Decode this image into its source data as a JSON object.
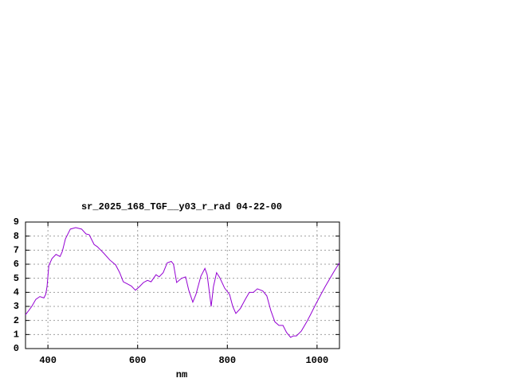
{
  "chart_data": {
    "type": "line",
    "title": "sr_2025_168_TGF__y03_r_rad 04-22-00",
    "x_label": "nm",
    "x": [
      350,
      364,
      373,
      382,
      391,
      395,
      398,
      402,
      409,
      418,
      427,
      432,
      439,
      450,
      462,
      475,
      485,
      492,
      503,
      510,
      524,
      538,
      551,
      560,
      568,
      577,
      586,
      595,
      604,
      613,
      622,
      630,
      641,
      648,
      657,
      666,
      675,
      680,
      687,
      698,
      707,
      714,
      723,
      730,
      741,
      750,
      755,
      764,
      769,
      776,
      783,
      794,
      805,
      812,
      819,
      829,
      840,
      849,
      858,
      867,
      879,
      888,
      897,
      906,
      915,
      924,
      932,
      941,
      947,
      954,
      965,
      977,
      986,
      997,
      1007,
      1018,
      1029,
      1039,
      1050
    ],
    "values": [
      2.4,
      3.0,
      3.5,
      3.7,
      3.6,
      3.85,
      4.4,
      5.9,
      6.4,
      6.7,
      6.55,
      6.9,
      7.8,
      8.5,
      8.6,
      8.5,
      8.15,
      8.1,
      7.4,
      7.25,
      6.8,
      6.3,
      5.95,
      5.4,
      4.75,
      4.6,
      4.45,
      4.15,
      4.4,
      4.7,
      4.85,
      4.75,
      5.25,
      5.1,
      5.4,
      6.1,
      6.2,
      6.0,
      4.7,
      5.0,
      5.1,
      4.15,
      3.3,
      3.85,
      5.15,
      5.7,
      5.25,
      3.0,
      4.4,
      5.4,
      5.05,
      4.3,
      3.85,
      3.0,
      2.5,
      2.85,
      3.5,
      4.0,
      4.0,
      4.25,
      4.1,
      3.75,
      2.7,
      1.9,
      1.65,
      1.65,
      1.15,
      0.8,
      0.9,
      0.9,
      1.25,
      1.9,
      2.45,
      3.15,
      3.75,
      4.4,
      5.0,
      5.55,
      6.1
    ],
    "color": "#9400d3",
    "xlim": [
      350,
      1050
    ],
    "xticks": [
      400,
      600,
      800,
      1000
    ],
    "ylim": [
      0,
      9
    ],
    "yticks": [
      0,
      1,
      2,
      3,
      4,
      5,
      6,
      7,
      8,
      9
    ],
    "grid": true
  }
}
